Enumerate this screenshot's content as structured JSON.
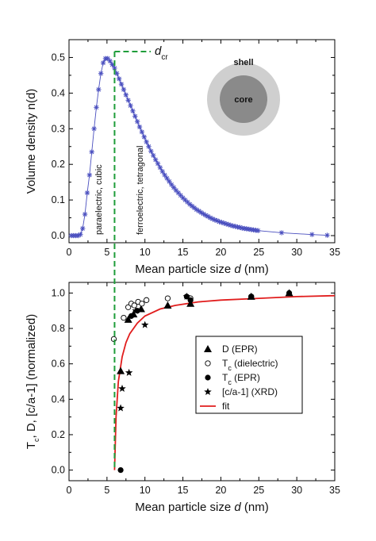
{
  "colors": {
    "density": "#4a4fbf",
    "fit": "#e11d1d",
    "dcr_line": "#1f9d3a",
    "shell": "#cfcfcf",
    "core": "#8a8a8a"
  },
  "chart_data": [
    {
      "type": "line",
      "xlabel_prefix": "Mean particle size ",
      "xlabel_var": "d",
      "xlabel_suffix": " (nm)",
      "ylabel": "Volume density n(d)",
      "xlim": [
        0,
        35
      ],
      "ylim": [
        -0.02,
        0.55
      ],
      "xticks": [
        "0",
        "5",
        "10",
        "15",
        "20",
        "25",
        "30",
        "35"
      ],
      "yticks": [
        "0.0",
        "0.1",
        "0.2",
        "0.3",
        "0.4",
        "0.5"
      ],
      "annotations": {
        "dcr_main": "d",
        "dcr_sub": "cr",
        "paraelectric": "paraelectric, cubic",
        "ferroelectric": "ferroelectric, tetragonal",
        "shell": "shell",
        "core": "core"
      },
      "dcr_x": 6,
      "series": [
        {
          "marker": "asterisk",
          "points": [
            [
              0.3,
              0
            ],
            [
              0.6,
              0
            ],
            [
              0.9,
              0
            ],
            [
              1.2,
              0
            ],
            [
              1.5,
              0.003
            ],
            [
              1.8,
              0.02
            ],
            [
              2.1,
              0.06
            ],
            [
              2.4,
              0.12
            ],
            [
              2.7,
              0.17
            ],
            [
              3.0,
              0.235
            ],
            [
              3.3,
              0.3
            ],
            [
              3.6,
              0.36
            ],
            [
              3.9,
              0.41
            ],
            [
              4.2,
              0.455
            ],
            [
              4.5,
              0.485
            ],
            [
              4.8,
              0.497
            ],
            [
              5.1,
              0.497
            ],
            [
              5.4,
              0.49
            ],
            [
              5.7,
              0.48
            ],
            [
              6.0,
              0.47
            ],
            [
              6.3,
              0.455
            ],
            [
              6.6,
              0.44
            ],
            [
              6.9,
              0.425
            ],
            [
              7.2,
              0.41
            ],
            [
              7.5,
              0.395
            ],
            [
              7.8,
              0.38
            ],
            [
              8.1,
              0.365
            ],
            [
              8.4,
              0.35
            ],
            [
              8.7,
              0.335
            ],
            [
              9.0,
              0.32
            ],
            [
              9.3,
              0.305
            ],
            [
              9.6,
              0.291
            ],
            [
              9.9,
              0.277
            ],
            [
              10.2,
              0.263
            ],
            [
              10.5,
              0.25
            ],
            [
              10.8,
              0.237
            ],
            [
              11.1,
              0.225
            ],
            [
              11.4,
              0.213
            ],
            [
              11.7,
              0.202
            ],
            [
              12.0,
              0.191
            ],
            [
              12.3,
              0.18
            ],
            [
              12.6,
              0.17
            ],
            [
              12.9,
              0.161
            ],
            [
              13.2,
              0.152
            ],
            [
              13.5,
              0.143
            ],
            [
              13.8,
              0.135
            ],
            [
              14.1,
              0.127
            ],
            [
              14.4,
              0.12
            ],
            [
              14.7,
              0.113
            ],
            [
              15.0,
              0.106
            ],
            [
              15.3,
              0.1
            ],
            [
              15.6,
              0.094
            ],
            [
              15.9,
              0.088
            ],
            [
              16.2,
              0.083
            ],
            [
              16.5,
              0.078
            ],
            [
              16.8,
              0.073
            ],
            [
              17.1,
              0.069
            ],
            [
              17.4,
              0.065
            ],
            [
              17.7,
              0.061
            ],
            [
              18.0,
              0.057
            ],
            [
              18.3,
              0.054
            ],
            [
              18.6,
              0.05
            ],
            [
              18.9,
              0.047
            ],
            [
              19.2,
              0.044
            ],
            [
              19.5,
              0.042
            ],
            [
              19.8,
              0.039
            ],
            [
              20.1,
              0.037
            ],
            [
              20.4,
              0.035
            ],
            [
              20.7,
              0.033
            ],
            [
              21.0,
              0.031
            ],
            [
              21.3,
              0.029
            ],
            [
              21.6,
              0.027
            ],
            [
              21.9,
              0.026
            ],
            [
              22.2,
              0.024
            ],
            [
              22.5,
              0.023
            ],
            [
              22.8,
              0.021
            ],
            [
              23.1,
              0.02
            ],
            [
              23.4,
              0.019
            ],
            [
              23.7,
              0.018
            ],
            [
              24.0,
              0.017
            ],
            [
              24.3,
              0.016
            ],
            [
              24.6,
              0.015
            ],
            [
              24.9,
              0.014
            ],
            [
              28.0,
              0.008
            ],
            [
              32.0,
              0.003
            ],
            [
              34.0,
              0.001
            ]
          ]
        }
      ]
    },
    {
      "type": "scatter",
      "xlabel_prefix": "Mean particle size ",
      "xlabel_var": "d",
      "xlabel_suffix": " (nm)",
      "ylabel": "Tₓ, D, [c/a-1]  (normalized)",
      "ylabel_a": "T",
      "ylabel_sub": "c",
      "ylabel_b": ", D, [c/a-1]  (normalized)",
      "xlim": [
        0,
        35
      ],
      "ylim": [
        -0.06,
        1.06
      ],
      "xticks": [
        "0",
        "5",
        "10",
        "15",
        "20",
        "25",
        "30",
        "35"
      ],
      "yticks": [
        "0.0",
        "0.2",
        "0.4",
        "0.6",
        "0.8",
        "1.0"
      ],
      "legend": [
        {
          "marker": "triangle",
          "label": "D (EPR)"
        },
        {
          "marker": "circle-open",
          "label_a": "T",
          "label_sub": "c",
          "label_b": " (dielectric)"
        },
        {
          "marker": "circle-filled",
          "label_a": "T",
          "label_sub": "c",
          "label_b": " (EPR)"
        },
        {
          "marker": "star",
          "label": "[c/a-1] (XRD)"
        },
        {
          "marker": "line",
          "label": "fit"
        }
      ],
      "series": [
        {
          "name": "D (EPR)",
          "points": [
            [
              6.8,
              0.56
            ],
            [
              7.8,
              0.85
            ],
            [
              8.5,
              0.88
            ],
            [
              9.5,
              0.91
            ],
            [
              13,
              0.93
            ],
            [
              16,
              0.94
            ],
            [
              24,
              0.98
            ],
            [
              29,
              1.0
            ]
          ]
        },
        {
          "name": "T_c (dielectric)",
          "points": [
            [
              5.9,
              0.74
            ],
            [
              7.2,
              0.86
            ],
            [
              7.8,
              0.92
            ],
            [
              8.2,
              0.94
            ],
            [
              8.6,
              0.93
            ],
            [
              9.1,
              0.95
            ],
            [
              9.6,
              0.94
            ],
            [
              10.2,
              0.96
            ],
            [
              13,
              0.97
            ],
            [
              16,
              0.97
            ],
            [
              24,
              0.98
            ]
          ]
        },
        {
          "name": "T_c (EPR)",
          "points": [
            [
              6.8,
              0.0
            ],
            [
              8.2,
              0.87
            ],
            [
              9.0,
              0.9
            ],
            [
              15.5,
              0.98
            ],
            [
              16,
              0.96
            ],
            [
              24,
              0.98
            ],
            [
              29,
              1.0
            ]
          ]
        },
        {
          "name": "[c/a-1] (XRD)",
          "points": [
            [
              6.8,
              0.35
            ],
            [
              7.0,
              0.46
            ],
            [
              7.9,
              0.55
            ],
            [
              8.8,
              0.9
            ],
            [
              10,
              0.82
            ],
            [
              15.5,
              0.98
            ]
          ]
        },
        {
          "name": "fit",
          "points": [
            [
              6.0,
              0.0
            ],
            [
              6.2,
              0.3
            ],
            [
              6.5,
              0.5
            ],
            [
              7,
              0.64
            ],
            [
              7.5,
              0.72
            ],
            [
              8,
              0.77
            ],
            [
              9,
              0.83
            ],
            [
              10,
              0.87
            ],
            [
              12,
              0.91
            ],
            [
              14,
              0.93
            ],
            [
              17,
              0.95
            ],
            [
              20,
              0.96
            ],
            [
              25,
              0.97
            ],
            [
              30,
              0.98
            ],
            [
              35,
              0.985
            ]
          ]
        }
      ]
    }
  ]
}
